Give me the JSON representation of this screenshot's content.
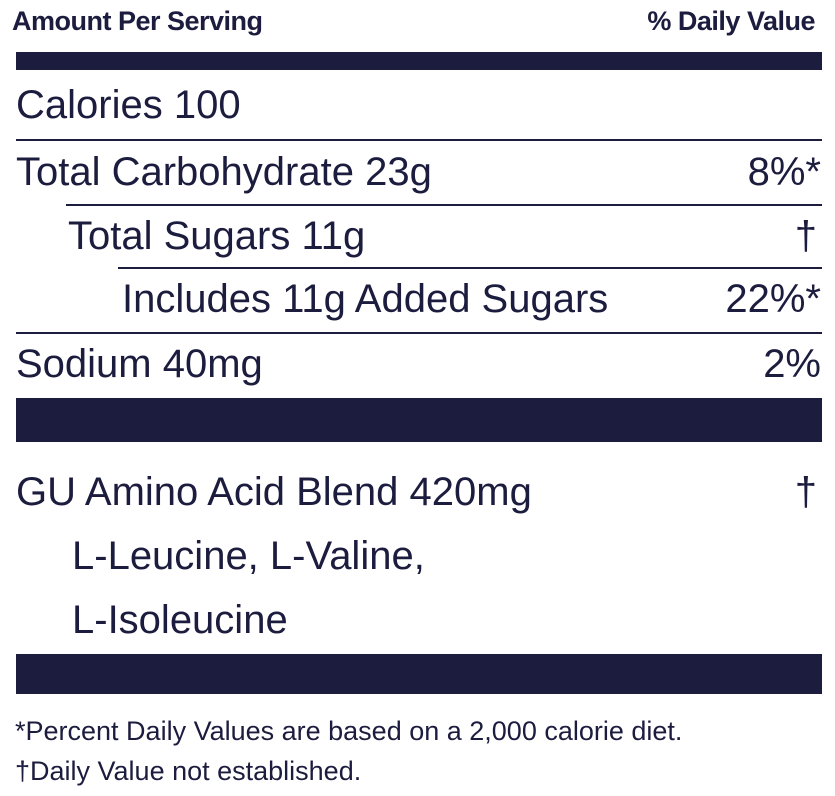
{
  "header": {
    "amount_per_serving": "Amount Per Serving",
    "daily_value": "% Daily Value"
  },
  "nutrients": {
    "calories": {
      "label": "Calories 100"
    },
    "total_carbohydrate": {
      "label": "Total Carbohydrate 23g",
      "dv": "8%*"
    },
    "total_sugars": {
      "label": "Total Sugars 11g",
      "dv": "†"
    },
    "added_sugars": {
      "label": "Includes 11g Added Sugars",
      "dv": "22%*"
    },
    "sodium": {
      "label": "Sodium 40mg",
      "dv": "2%"
    }
  },
  "blend": {
    "label": "GU Amino Acid Blend 420mg",
    "dv": "†",
    "ingredients_line1": "L-Leucine, L-Valine,",
    "ingredients_line2": "L-Isoleucine"
  },
  "footnotes": {
    "percent_note": "*Percent Daily Values are based on a 2,000 calorie diet.",
    "dagger_note": "†Daily Value not established."
  },
  "colors": {
    "ink": "#1c1c3e",
    "background": "#ffffff"
  }
}
